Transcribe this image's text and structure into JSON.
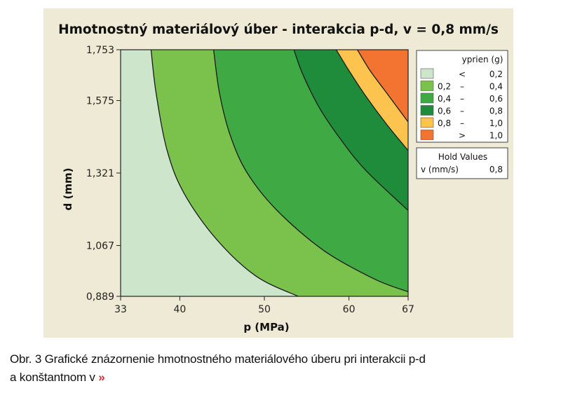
{
  "chart_data": {
    "type": "contour",
    "title": "Hmotnostný materiálový úber - interakcia p-d, v = 0,8 mm/s",
    "xlabel": "p (MPa)",
    "ylabel": "d (mm)",
    "xlim": [
      33,
      67
    ],
    "ylim": [
      0.889,
      1.753
    ],
    "x_ticks": [
      "33",
      "40",
      "50",
      "60",
      "67"
    ],
    "x_tick_values": [
      33,
      40,
      50,
      60,
      67
    ],
    "y_ticks": [
      "0,889",
      "1,067",
      "1,321",
      "1,575",
      "1,753"
    ],
    "y_tick_values": [
      0.889,
      1.067,
      1.321,
      1.575,
      1.753
    ],
    "legend": {
      "title": "yprien (g)",
      "placement": "right",
      "entries": [
        {
          "low": "",
          "sep": "<",
          "high": "0,2",
          "color": "#cde6cb"
        },
        {
          "low": "0,2",
          "sep": "–",
          "high": "0,4",
          "color": "#7ac24b"
        },
        {
          "low": "0,4",
          "sep": "–",
          "high": "0,6",
          "color": "#3faa43"
        },
        {
          "low": "0,6",
          "sep": "–",
          "high": "0,8",
          "color": "#1e8c3a"
        },
        {
          "low": "0,8",
          "sep": "–",
          "high": "1,0",
          "color": "#fcc44f"
        },
        {
          "low": "",
          "sep": ">",
          "high": "1,0",
          "color": "#f27430"
        }
      ]
    },
    "hold_values": {
      "title": "Hold Values",
      "variable": "v (mm/s)",
      "value": "0,8"
    },
    "contour_lines": [
      {
        "level": 0.2,
        "points": [
          [
            36.6,
            1.753
          ],
          [
            37.2,
            1.6
          ],
          [
            38.5,
            1.4
          ],
          [
            40.5,
            1.25
          ],
          [
            44.3,
            1.09
          ],
          [
            49.0,
            0.96
          ],
          [
            54.0,
            0.889
          ]
        ]
      },
      {
        "level": 0.4,
        "points": [
          [
            44.0,
            1.753
          ],
          [
            44.7,
            1.6
          ],
          [
            46.0,
            1.45
          ],
          [
            48.0,
            1.32
          ],
          [
            51.5,
            1.19
          ],
          [
            57.0,
            1.05
          ],
          [
            63.0,
            0.95
          ],
          [
            67.0,
            0.905
          ]
        ]
      },
      {
        "level": 0.6,
        "points": [
          [
            53.5,
            1.753
          ],
          [
            54.5,
            1.67
          ],
          [
            56.5,
            1.55
          ],
          [
            59.0,
            1.44
          ],
          [
            62.0,
            1.33
          ],
          [
            67.0,
            1.19
          ]
        ]
      },
      {
        "level": 0.8,
        "points": [
          [
            58.5,
            1.753
          ],
          [
            60.0,
            1.68
          ],
          [
            62.0,
            1.59
          ],
          [
            64.5,
            1.49
          ],
          [
            67.0,
            1.4
          ]
        ]
      },
      {
        "level": 1.0,
        "points": [
          [
            61.0,
            1.753
          ],
          [
            62.5,
            1.68
          ],
          [
            64.5,
            1.6
          ],
          [
            67.0,
            1.5
          ]
        ]
      }
    ],
    "grid": false
  },
  "caption": {
    "line1": "Obr. 3 Grafické znázornenie hmotnostného materiálového úberu pri interakcii p-d",
    "line2": "a konštantnom v",
    "arrow": "»"
  }
}
